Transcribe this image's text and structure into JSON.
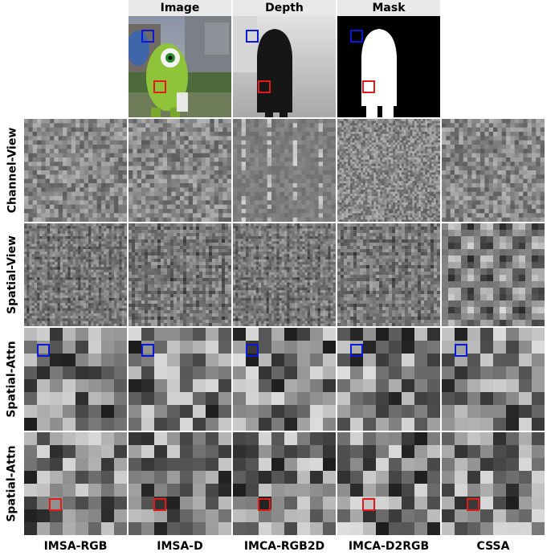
{
  "header": {
    "image_label": "Image",
    "depth_label": "Depth",
    "mask_label": "Mask"
  },
  "rows": [
    {
      "label": "Channel-View"
    },
    {
      "label": "Spatial-View"
    },
    {
      "label": "Spatial-Attn"
    },
    {
      "label": "Spatial-Attn"
    }
  ],
  "columns": [
    {
      "label": "IMSA-RGB"
    },
    {
      "label": "IMSA-D"
    },
    {
      "label": "IMCA-RGB2D"
    },
    {
      "label": "IMCA-D2RGB"
    },
    {
      "label": "CSSA"
    }
  ],
  "colors": {
    "marker_blue": "#0a18d8",
    "marker_red": "#e21a1a",
    "header_bg": "#e9e9e9"
  }
}
